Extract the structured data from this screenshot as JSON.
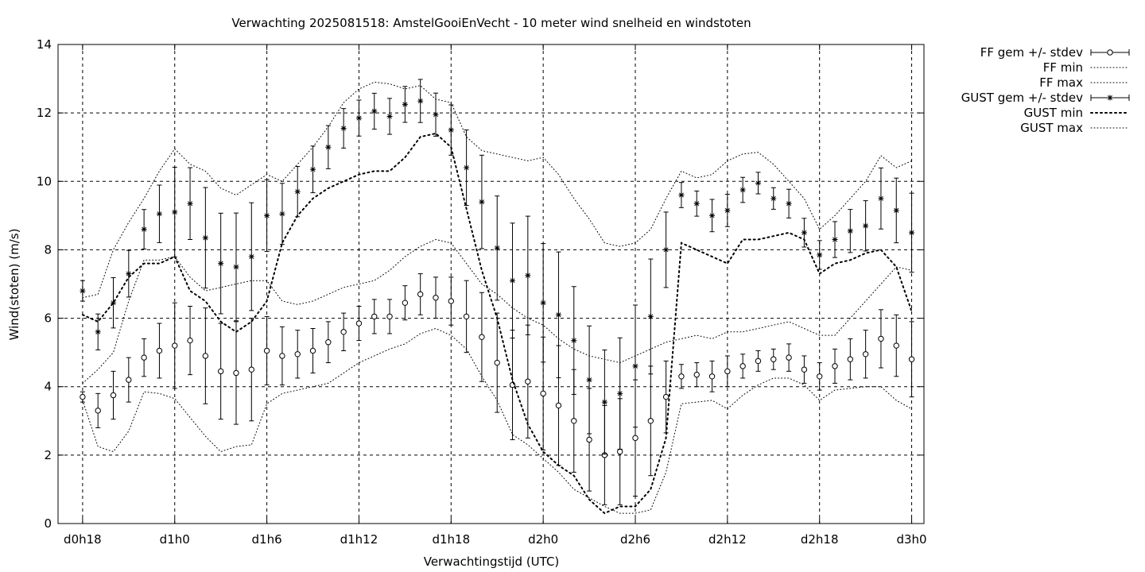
{
  "chart_data": {
    "type": "line",
    "title": "Verwachting 2025081518: AmstelGooiEnVecht - 10 meter wind snelheid en windstoten",
    "xlabel": "Verwachtingstijd (UTC)",
    "ylabel": "Wind(stoten) (m/s)",
    "ylim": [
      0,
      14
    ],
    "yticks": [
      0,
      2,
      4,
      6,
      8,
      10,
      12,
      14
    ],
    "x_unit": "hours since d0h0",
    "xlim": [
      16.4,
      72.8
    ],
    "xticks": [
      {
        "x": 18,
        "label": "d0h18"
      },
      {
        "x": 24,
        "label": "d1h0"
      },
      {
        "x": 30,
        "label": "d1h6"
      },
      {
        "x": 36,
        "label": "d1h12"
      },
      {
        "x": 42,
        "label": "d1h18"
      },
      {
        "x": 48,
        "label": "d2h0"
      },
      {
        "x": 54,
        "label": "d2h6"
      },
      {
        "x": 60,
        "label": "d2h12"
      },
      {
        "x": 66,
        "label": "d2h18"
      },
      {
        "x": 72,
        "label": "d3h0"
      }
    ],
    "grid": true,
    "legend_position": "outside-top-right",
    "x": [
      18,
      19,
      20,
      21,
      22,
      23,
      24,
      25,
      26,
      27,
      28,
      29,
      30,
      31,
      32,
      33,
      34,
      35,
      36,
      37,
      38,
      39,
      40,
      41,
      42,
      43,
      44,
      45,
      46,
      47,
      48,
      49,
      50,
      51,
      52,
      53,
      54,
      55,
      56,
      57,
      58,
      59,
      60,
      61,
      62,
      63,
      64,
      65,
      66,
      67,
      68,
      69,
      70,
      71,
      72
    ],
    "series": [
      {
        "name": "FF gem +/- stdev",
        "style": "errorbar-circle",
        "values": [
          3.7,
          3.3,
          3.75,
          4.2,
          4.85,
          5.05,
          5.2,
          5.35,
          4.9,
          4.45,
          4.4,
          4.5,
          5.05,
          4.9,
          4.95,
          5.05,
          5.3,
          5.6,
          5.85,
          6.05,
          6.05,
          6.45,
          6.7,
          6.6,
          6.5,
          6.05,
          5.45,
          4.7,
          4.05,
          4.15,
          3.8,
          3.45,
          3.0,
          2.45,
          2.0,
          2.1,
          2.5,
          3.0,
          3.7,
          4.3,
          4.35,
          4.3,
          4.45,
          4.6,
          4.75,
          4.8,
          4.85,
          4.5,
          4.3,
          4.6,
          4.8,
          4.95,
          5.4,
          5.2,
          4.8
        ],
        "err": [
          0.15,
          0.5,
          0.7,
          0.65,
          0.55,
          0.8,
          1.25,
          1.0,
          1.4,
          1.4,
          1.5,
          1.5,
          1.0,
          0.85,
          0.7,
          0.65,
          0.6,
          0.55,
          0.5,
          0.5,
          0.5,
          0.5,
          0.6,
          0.6,
          0.7,
          1.05,
          1.3,
          1.45,
          1.6,
          1.65,
          1.65,
          1.75,
          1.5,
          1.5,
          1.45,
          1.55,
          1.7,
          1.6,
          1.05,
          0.35,
          0.35,
          0.45,
          0.45,
          0.35,
          0.3,
          0.3,
          0.4,
          0.4,
          0.4,
          0.5,
          0.6,
          0.7,
          0.85,
          0.9,
          1.1
        ]
      },
      {
        "name": "FF min",
        "style": "dotted",
        "values": [
          3.6,
          2.25,
          2.1,
          2.7,
          3.85,
          3.8,
          3.65,
          3.1,
          2.55,
          2.1,
          2.25,
          2.3,
          3.5,
          3.8,
          3.9,
          4.0,
          4.1,
          4.4,
          4.7,
          4.9,
          5.1,
          5.25,
          5.55,
          5.7,
          5.5,
          5.1,
          4.3,
          3.6,
          2.6,
          2.3,
          1.9,
          1.5,
          1.0,
          0.75,
          0.5,
          0.3,
          0.3,
          0.4,
          1.5,
          3.5,
          3.55,
          3.6,
          3.35,
          3.75,
          4.05,
          4.25,
          4.25,
          4.05,
          3.6,
          3.9,
          3.95,
          4.0,
          4.0,
          3.6,
          3.35
        ]
      },
      {
        "name": "FF max",
        "style": "dotted",
        "values": [
          4.1,
          4.5,
          5.0,
          6.5,
          7.7,
          7.7,
          7.8,
          7.2,
          6.8,
          6.9,
          7.0,
          7.1,
          7.1,
          6.5,
          6.4,
          6.5,
          6.7,
          6.9,
          7.0,
          7.1,
          7.4,
          7.8,
          8.1,
          8.3,
          8.2,
          7.6,
          7.0,
          6.7,
          6.3,
          6.0,
          5.8,
          5.4,
          5.1,
          4.9,
          4.8,
          4.7,
          4.9,
          5.1,
          5.3,
          5.4,
          5.5,
          5.4,
          5.6,
          5.6,
          5.7,
          5.8,
          5.9,
          5.7,
          5.5,
          5.5,
          6.0,
          6.5,
          7.0,
          7.5,
          7.4
        ]
      },
      {
        "name": "GUST gem +/- stdev",
        "style": "errorbar-star",
        "values": [
          6.8,
          5.6,
          6.45,
          7.3,
          8.6,
          9.05,
          9.1,
          9.35,
          8.35,
          7.6,
          7.5,
          7.8,
          9.0,
          9.05,
          9.7,
          10.35,
          11.0,
          11.55,
          11.85,
          12.05,
          11.9,
          12.25,
          12.35,
          11.95,
          11.5,
          10.4,
          9.4,
          8.05,
          7.1,
          7.25,
          6.45,
          6.1,
          5.35,
          4.2,
          3.55,
          3.8,
          4.6,
          6.05,
          8.0,
          9.6,
          9.35,
          9.0,
          9.15,
          9.75,
          9.95,
          9.5,
          9.35,
          8.5,
          7.85,
          8.3,
          8.55,
          8.7,
          9.5,
          9.15,
          8.5
        ]
      },
      {
        "name": "GUST min",
        "style": "dotted",
        "values": [
          6.1,
          5.9,
          6.45,
          7.2,
          7.6,
          7.6,
          7.8,
          6.8,
          6.5,
          5.9,
          5.6,
          5.9,
          6.5,
          8.2,
          9.0,
          9.5,
          9.8,
          10.0,
          10.2,
          10.3,
          10.3,
          10.7,
          11.3,
          11.4,
          11.0,
          9.2,
          7.4,
          6.0,
          4.2,
          2.9,
          2.1,
          1.7,
          1.4,
          0.7,
          0.3,
          0.5,
          0.5,
          1.0,
          2.5,
          8.2,
          8.0,
          7.8,
          7.6,
          8.3,
          8.3,
          8.4,
          8.5,
          8.3,
          7.3,
          7.6,
          7.7,
          7.9,
          8.0,
          7.5,
          6.2
        ]
      },
      {
        "name": "GUST max",
        "style": "dotted",
        "values": [
          6.6,
          6.7,
          8.0,
          8.8,
          9.5,
          10.3,
          10.95,
          10.5,
          10.3,
          9.8,
          9.6,
          9.9,
          10.2,
          10.0,
          10.5,
          11.0,
          11.6,
          12.3,
          12.7,
          12.9,
          12.85,
          12.7,
          12.8,
          12.4,
          12.3,
          11.3,
          10.9,
          10.8,
          10.7,
          10.6,
          10.7,
          10.2,
          9.5,
          8.9,
          8.2,
          8.1,
          8.2,
          8.6,
          9.5,
          10.3,
          10.1,
          10.2,
          10.6,
          10.8,
          10.85,
          10.5,
          10.0,
          9.5,
          8.6,
          9.0,
          9.5,
          10.0,
          10.75,
          10.4,
          10.6
        ]
      }
    ]
  }
}
